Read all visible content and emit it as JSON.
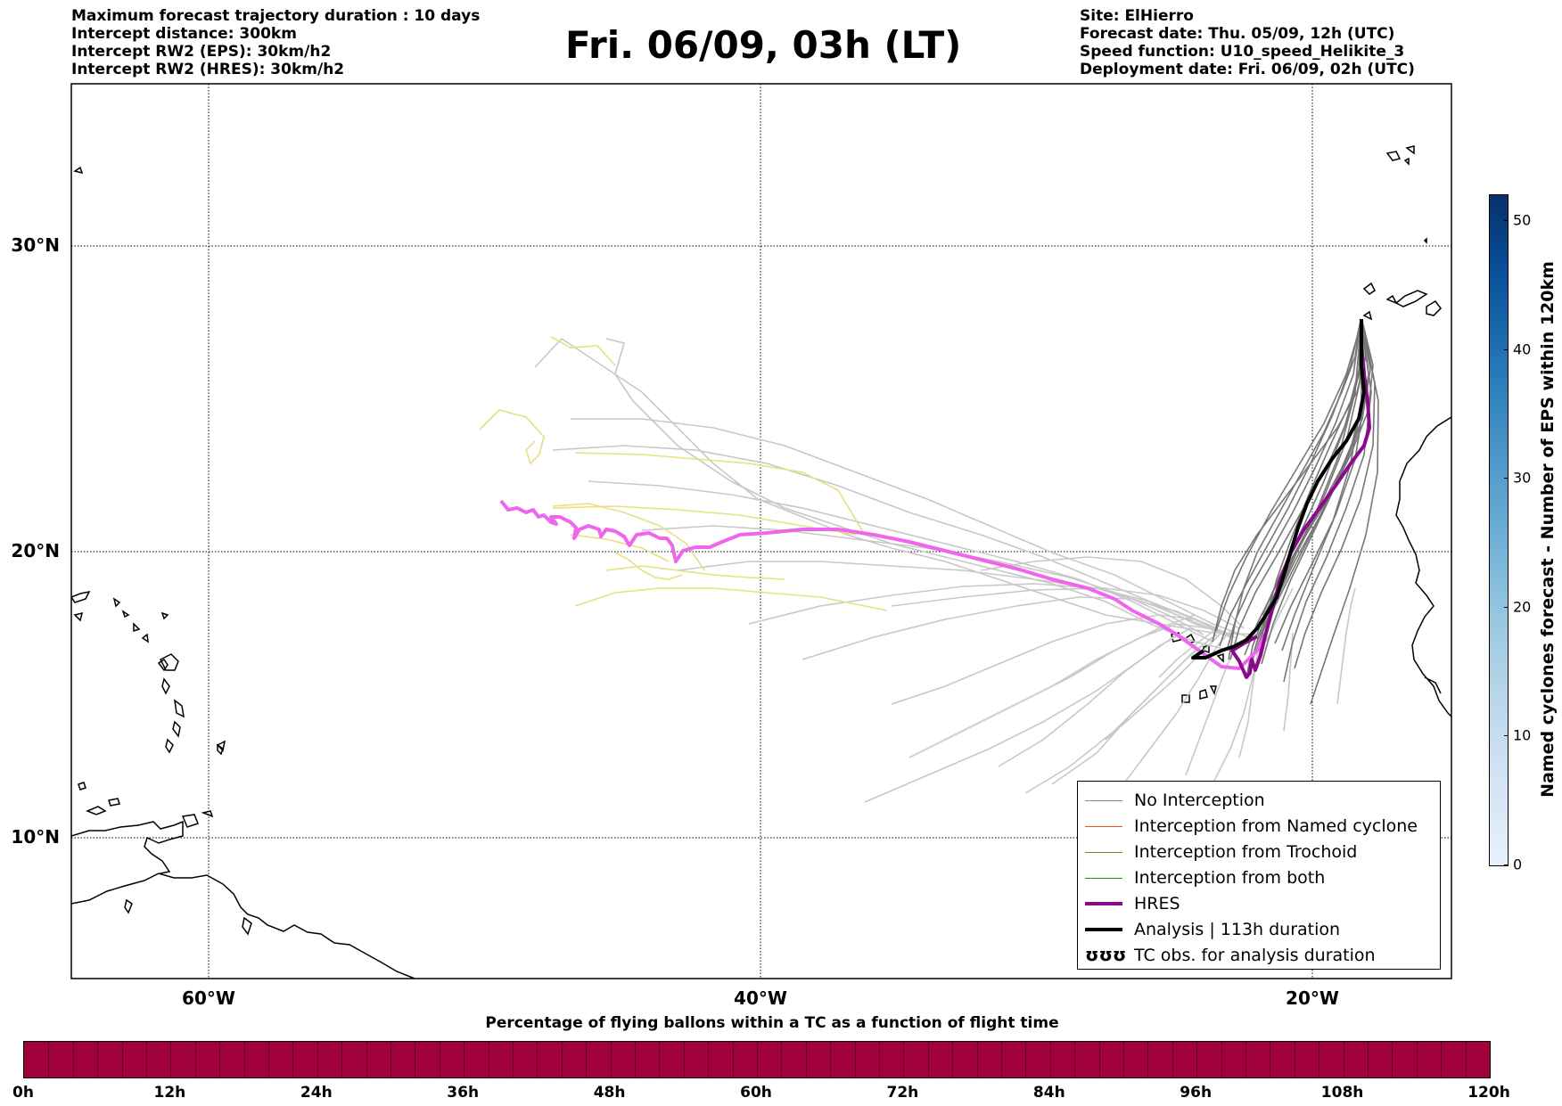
{
  "header": {
    "left_lines": [
      "Maximum forecast trajectory duration : 10 days",
      "Intercept distance: 300km",
      "Intercept RW2 (EPS):  30km/h2",
      "Intercept RW2 (HRES): 30km/h2"
    ],
    "title": "Fri. 06/09, 03h (LT)",
    "right_lines": [
      "Site: ElHierro",
      "Forecast date: Thu. 05/09, 12h (UTC)",
      "Speed function: U10_speed_Helikite_3",
      "Deployment date: Fri. 06/09, 02h (UTC)"
    ]
  },
  "map": {
    "lat_labels": [
      "30°N",
      "20°N",
      "10°N"
    ],
    "lon_labels": [
      "60°W",
      "40°W",
      "20°W"
    ],
    "colors": {
      "eps_no_interception": "#c8c8c8",
      "eps_trochoid": "#e6e080",
      "eps_near_site": "#777777",
      "hres": "#8b0a8b",
      "hres_earlier": "#ee66ee",
      "analysis": "#000000",
      "coastline": "#000000"
    }
  },
  "legend": {
    "items": [
      {
        "label": "No Interception",
        "color": "#888888",
        "style": "thin"
      },
      {
        "label": "Interception from Named cyclone",
        "color": "#e8561c",
        "style": "thin"
      },
      {
        "label": "Interception from Trochoid",
        "color": "#808010",
        "style": "thin"
      },
      {
        "label": "Interception from both",
        "color": "#1a8a1a",
        "style": "thin"
      },
      {
        "label": "HRES",
        "color": "#8b0a8b",
        "style": "thick"
      },
      {
        "label": "Analysis | 113h duration",
        "color": "#000000",
        "style": "thick"
      },
      {
        "label": "TC obs. for analysis duration",
        "color": "#000000",
        "style": "symbol",
        "symbol": "ʊʊʊ"
      }
    ]
  },
  "colorbar_right": {
    "label": "Named cyclones forecast - Number of EPS within 120km",
    "ticks": [
      "0",
      "10",
      "20",
      "30",
      "40",
      "50"
    ],
    "max": 52
  },
  "colorbar_bottom": {
    "title": "Percentage of flying ballons within a TC as a function of flight time",
    "ticks": [
      "0h",
      "12h",
      "24h",
      "36h",
      "48h",
      "60h",
      "72h",
      "84h",
      "96h",
      "108h",
      "120h"
    ],
    "color": "#a0003c"
  }
}
